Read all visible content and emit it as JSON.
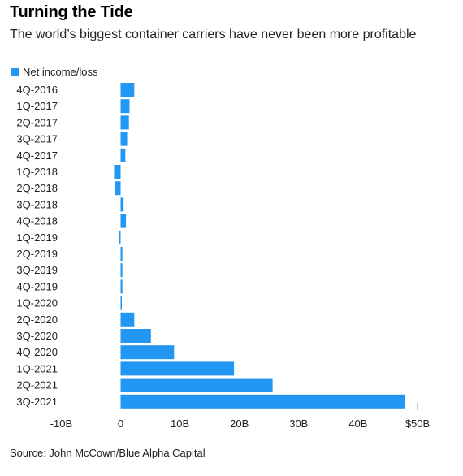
{
  "title": "Turning the Tide",
  "subtitle": "The world’s biggest container carriers have never been more profitable",
  "legend_label": "Net income/loss",
  "source": "Source: John McCown/Blue Alpha Capital",
  "colors": {
    "bar": "#2196f3",
    "tick": "#888888"
  },
  "chart_data": {
    "type": "bar",
    "orientation": "horizontal",
    "categories": [
      "4Q-2016",
      "1Q-2017",
      "2Q-2017",
      "3Q-2017",
      "4Q-2017",
      "1Q-2018",
      "2Q-2018",
      "3Q-2018",
      "4Q-2018",
      "1Q-2019",
      "2Q-2019",
      "3Q-2019",
      "4Q-2019",
      "1Q-2020",
      "2Q-2020",
      "3Q-2020",
      "4Q-2020",
      "1Q-2021",
      "2Q-2021",
      "3Q-2021"
    ],
    "series": [
      {
        "name": "Net income/loss",
        "values": [
          2.3,
          1.5,
          1.4,
          1.1,
          0.8,
          -1.1,
          -1.0,
          0.5,
          0.9,
          -0.3,
          0.3,
          0.3,
          0.3,
          0.2,
          2.3,
          5.1,
          9.0,
          19.1,
          25.6,
          47.9
        ]
      }
    ],
    "xlim": [
      -10,
      50
    ],
    "ticks": [
      {
        "value": -10,
        "label": "-10B"
      },
      {
        "value": 0,
        "label": "0"
      },
      {
        "value": 10,
        "label": "10B"
      },
      {
        "value": 20,
        "label": "20B"
      },
      {
        "value": 30,
        "label": "30B"
      },
      {
        "value": 40,
        "label": "40B"
      },
      {
        "value": 50,
        "label": "$50B"
      }
    ],
    "grid": false,
    "legend": "top-left"
  }
}
